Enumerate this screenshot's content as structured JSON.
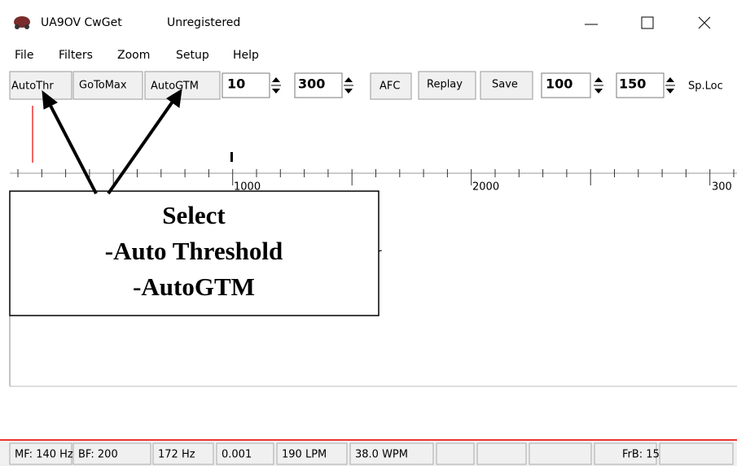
{
  "window": {
    "title": "UA9OV CwGet",
    "status": "Unregistered"
  },
  "menu": [
    "File",
    "Filters",
    "Zoom",
    "Setup",
    "Help"
  ],
  "toolbar": {
    "auto_threshold": "AutoThr",
    "go_to_max": "GoToMax",
    "auto_gtm": "AutoGTM",
    "field_1": "10",
    "field_2": "300",
    "afc": "AFC",
    "replay": "Replay",
    "save": "Save",
    "field_3": "100",
    "field_4": "150",
    "sp_loc": "Sp.Loc"
  },
  "ruler": [
    "1000",
    "2000",
    "300"
  ],
  "text_fragment": "r",
  "callout": [
    "Select",
    "-Auto Threshold",
    "-AutoGTM"
  ],
  "statusbar": [
    "MF: 140 Hz",
    "BF: 200",
    "172 Hz",
    "0.001",
    "190 LPM",
    "38.0 WPM",
    "FrB: 15"
  ]
}
